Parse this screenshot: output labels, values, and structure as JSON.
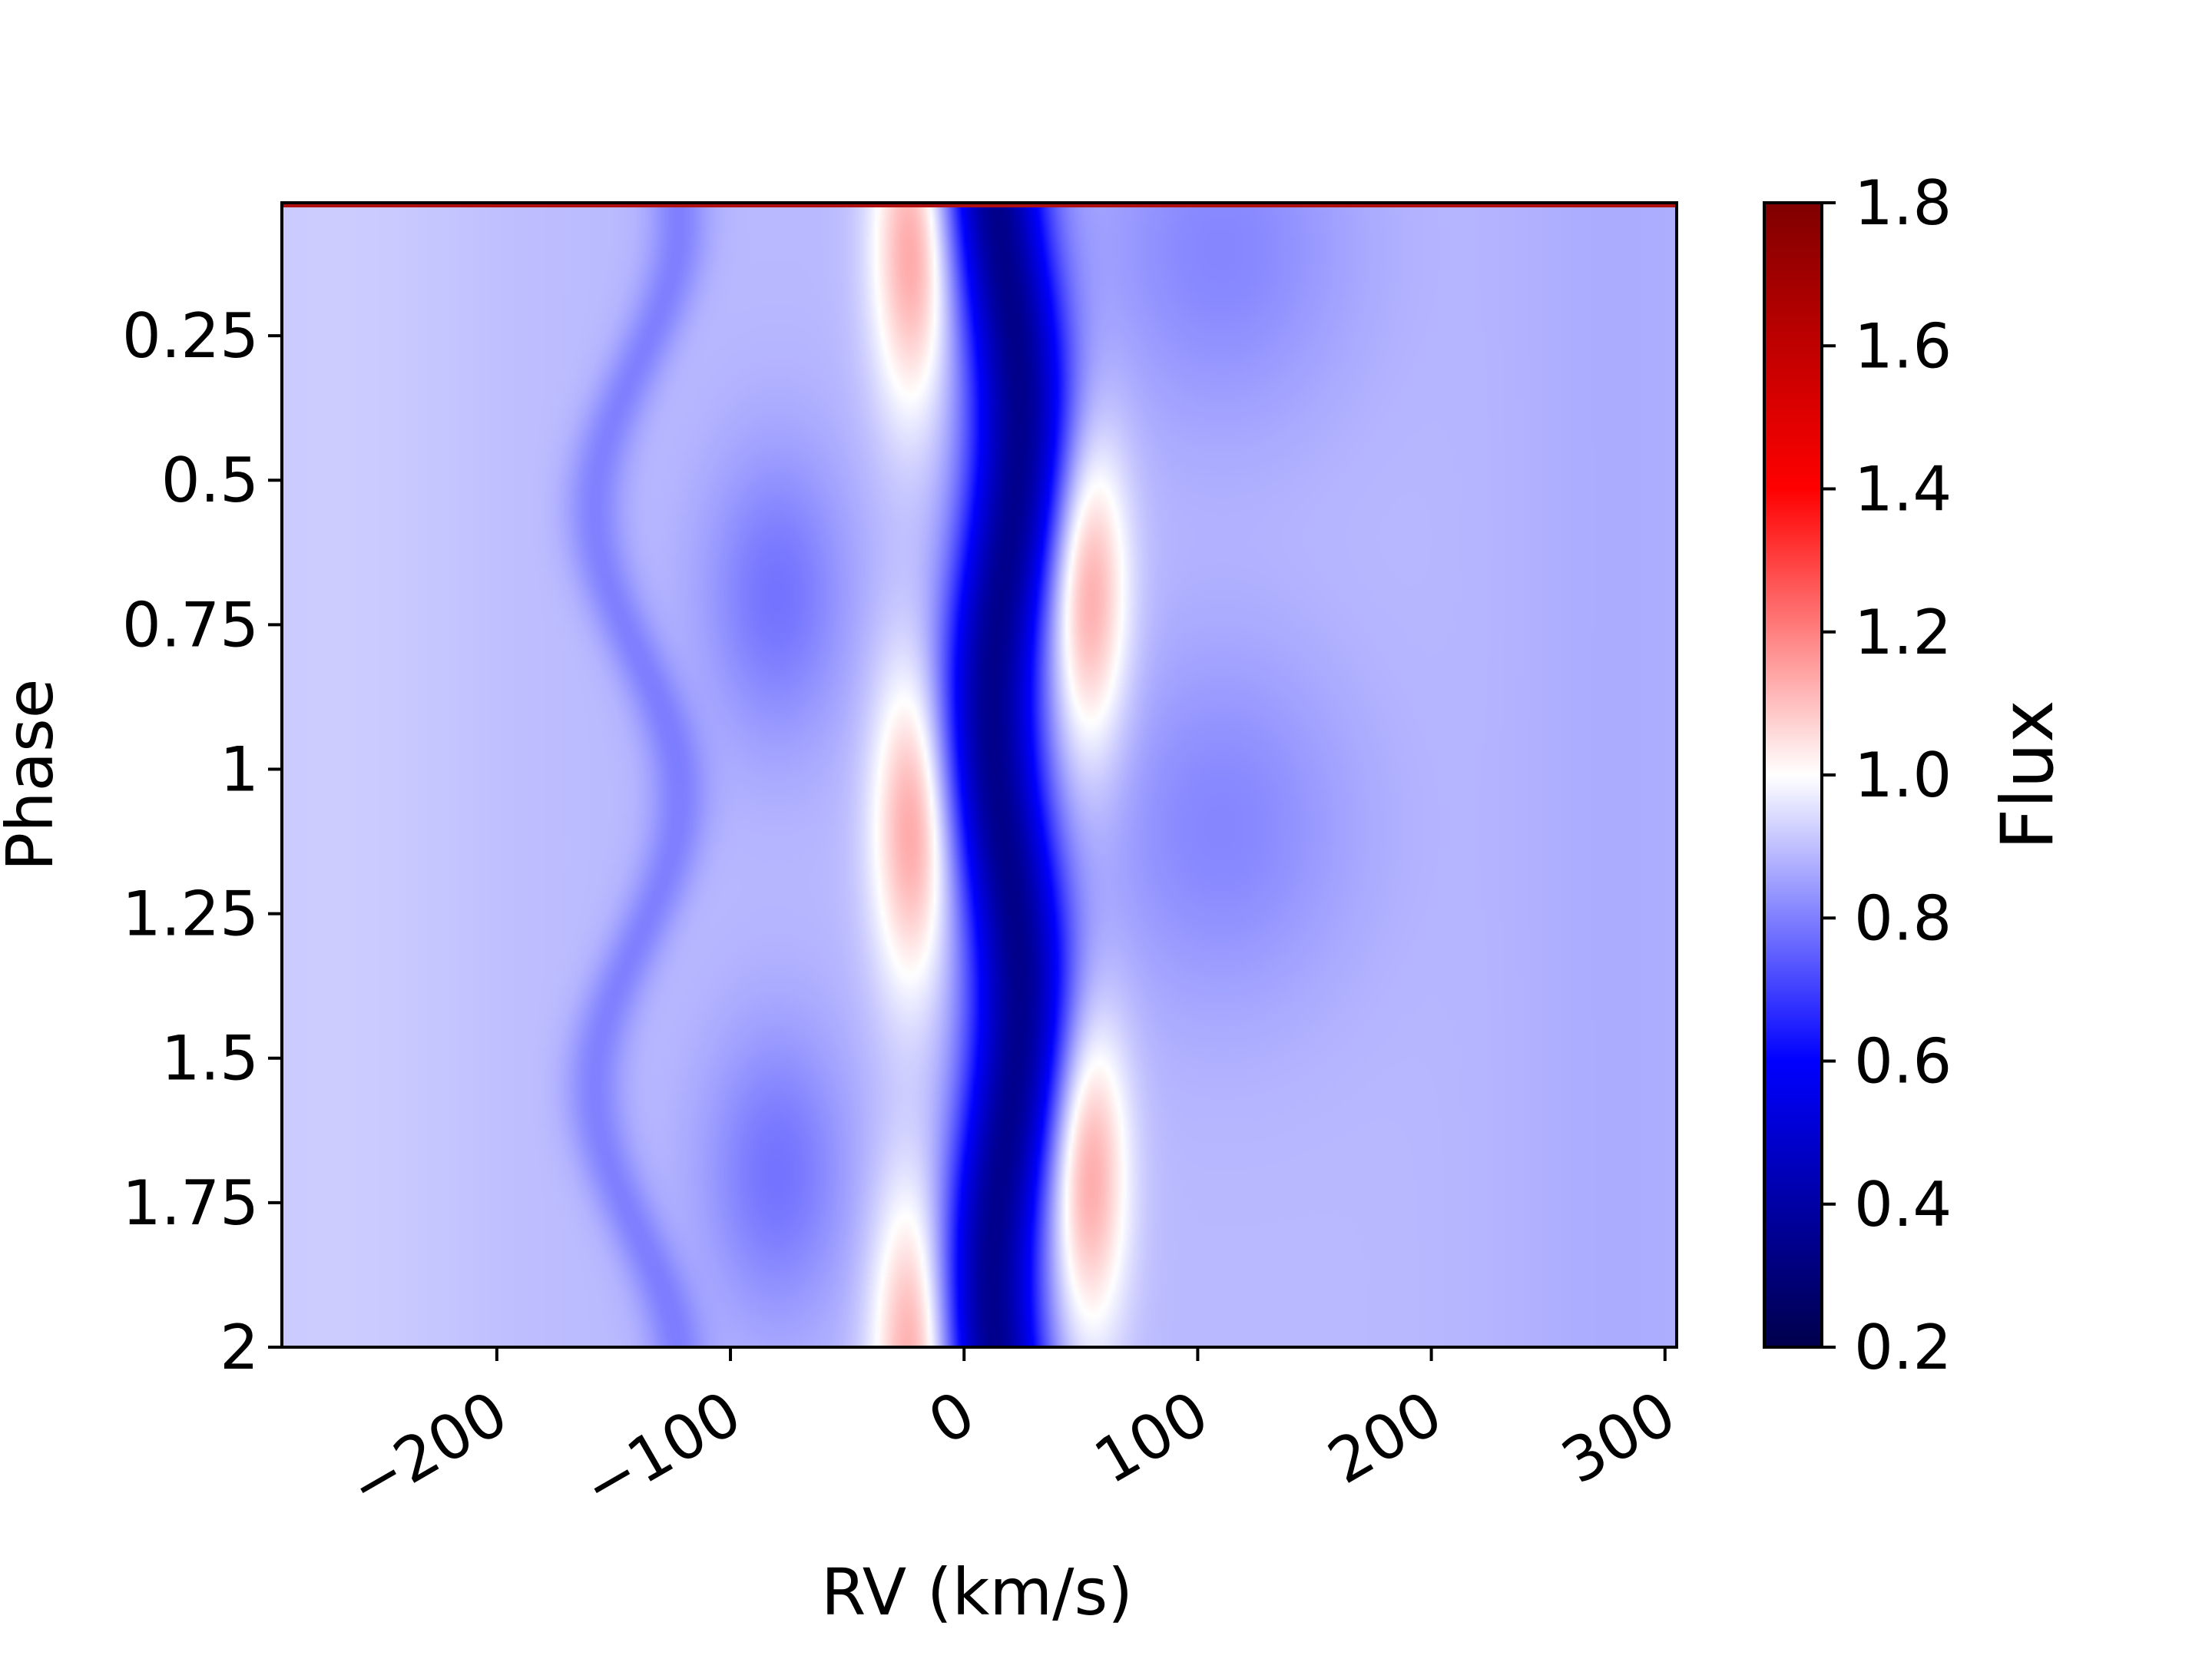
{
  "chart_data": {
    "type": "heatmap",
    "xlabel": "RV (km/s)",
    "ylabel": "Phase",
    "x_ticks": [
      -200,
      -100,
      0,
      100,
      200,
      300
    ],
    "x_tick_labels": [
      "−200",
      "−100",
      "0",
      "100",
      "200",
      "300"
    ],
    "y_ticks": [
      0.25,
      0.5,
      0.75,
      1,
      1.25,
      1.5,
      1.75,
      2
    ],
    "y_tick_labels": [
      "0.25",
      "0.5",
      "0.75",
      "1",
      "1.25",
      "1.5",
      "1.75",
      "2"
    ],
    "xlim": [
      -292,
      305
    ],
    "ylim": [
      2.0,
      0.02
    ],
    "colorbar": {
      "label": "Flux",
      "range": [
        0.2,
        1.8
      ],
      "ticks": [
        1.8,
        1.6,
        1.4,
        1.2,
        1.0,
        0.8,
        0.6,
        0.4,
        0.2
      ],
      "tick_labels": [
        "1.8",
        "1.6",
        "1.4",
        "1.2",
        "1.0",
        "0.8",
        "0.6",
        "0.4",
        "0.2"
      ],
      "colormap": "seismic",
      "colors": {
        "low": "#00004c",
        "mid_low": "#0000ff",
        "center": "#ffffff",
        "mid_high": "#ff0000",
        "high": "#800000"
      }
    },
    "features": [
      {
        "name": "central absorption",
        "rv_center": 18,
        "rv_amplitude": 6,
        "depth_flux": 0.45
      },
      {
        "name": "blue-side emission peaks",
        "rv_center": -22,
        "phases": [
          0.1,
          1.1,
          2.0
        ],
        "peak_flux": 1.12
      },
      {
        "name": "red-side emission peaks",
        "rv_center": 53,
        "phases": [
          0.7,
          1.7
        ],
        "peak_flux": 1.12
      },
      {
        "name": "oscillating absorption ridge",
        "rv_center": -140,
        "rv_amplitude": 18,
        "flux": 0.8
      },
      {
        "name": "absorption patch",
        "rv_center": -80,
        "phases": [
          0.7,
          1.7
        ],
        "flux": 0.78
      },
      {
        "name": "absorption patch",
        "rv_center": 110,
        "phases": [
          0.1,
          1.1
        ],
        "flux": 0.8
      }
    ]
  }
}
